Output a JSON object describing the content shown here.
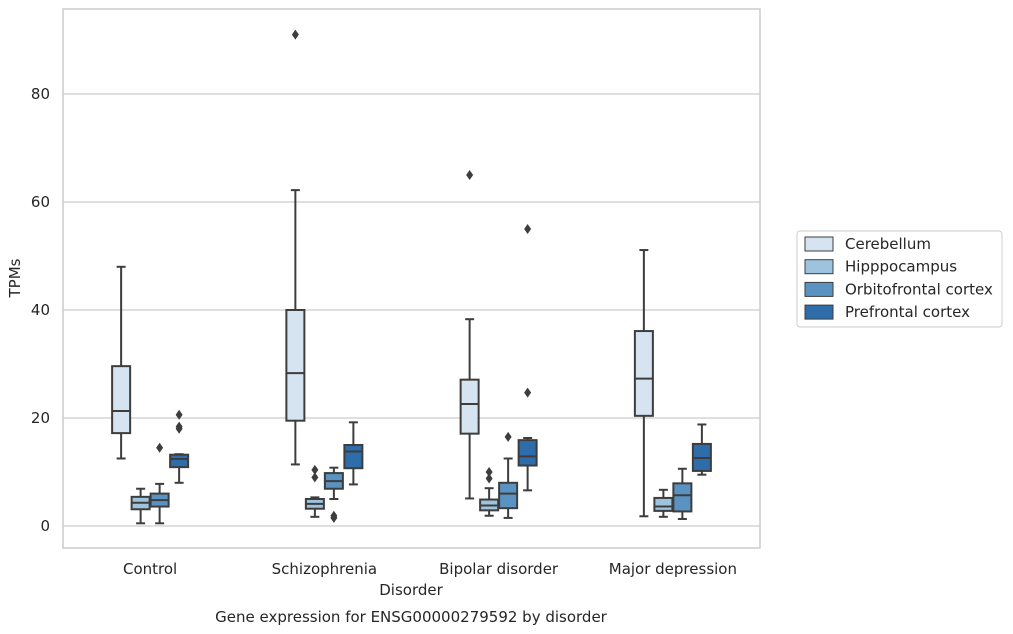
{
  "chart_data": {
    "type": "box",
    "title": "Gene expression for ENSG00000279592 by disorder",
    "xlabel": "Disorder",
    "ylabel": "TPMs",
    "categories": [
      "Control",
      "Schizophrenia",
      "Bipolar disorder",
      "Major depression"
    ],
    "yticks": [
      0,
      20,
      40,
      60,
      80
    ],
    "ylim": [
      -4,
      96
    ],
    "grid": "horizontal",
    "legend_position": "right",
    "series": [
      {
        "name": "Cerebellum",
        "color": "#d6e4f2",
        "boxes": [
          {
            "whisker_low": 12.5,
            "q1": 17.2,
            "median": 21.3,
            "q3": 29.6,
            "whisker_high": 48.0,
            "outliers": []
          },
          {
            "whisker_low": 11.4,
            "q1": 19.5,
            "median": 28.3,
            "q3": 40.0,
            "whisker_high": 62.2,
            "outliers": [
              91.0
            ]
          },
          {
            "whisker_low": 5.1,
            "q1": 17.1,
            "median": 22.6,
            "q3": 27.1,
            "whisker_high": 38.3,
            "outliers": [
              65.0
            ]
          },
          {
            "whisker_low": 1.8,
            "q1": 20.4,
            "median": 27.3,
            "q3": 36.1,
            "whisker_high": 51.1,
            "outliers": []
          }
        ]
      },
      {
        "name": "Hipppocampus",
        "color": "#9dc3de",
        "boxes": [
          {
            "whisker_low": 0.5,
            "q1": 3.1,
            "median": 4.3,
            "q3": 5.4,
            "whisker_high": 6.9,
            "outliers": []
          },
          {
            "whisker_low": 1.7,
            "q1": 3.2,
            "median": 4.1,
            "q3": 5.0,
            "whisker_high": 5.3,
            "outliers": [
              10.4,
              9.0
            ]
          },
          {
            "whisker_low": 1.9,
            "q1": 2.9,
            "median": 3.8,
            "q3": 4.9,
            "whisker_high": 7.0,
            "outliers": [
              10.0,
              8.8
            ]
          },
          {
            "whisker_low": 1.7,
            "q1": 2.8,
            "median": 3.6,
            "q3": 5.2,
            "whisker_high": 6.7,
            "outliers": []
          }
        ]
      },
      {
        "name": "Orbitofrontal cortex",
        "color": "#5a93c2",
        "boxes": [
          {
            "whisker_low": 0.5,
            "q1": 3.6,
            "median": 4.8,
            "q3": 6.0,
            "whisker_high": 7.8,
            "outliers": [
              14.5
            ]
          },
          {
            "whisker_low": 5.0,
            "q1": 6.9,
            "median": 8.3,
            "q3": 9.8,
            "whisker_high": 10.8,
            "outliers": [
              1.5,
              1.9
            ]
          },
          {
            "whisker_low": 1.5,
            "q1": 3.3,
            "median": 6.0,
            "q3": 8.0,
            "whisker_high": 12.5,
            "outliers": [
              16.5
            ]
          },
          {
            "whisker_low": 1.3,
            "q1": 2.7,
            "median": 5.7,
            "q3": 7.9,
            "whisker_high": 10.6,
            "outliers": []
          }
        ]
      },
      {
        "name": "Prefrontal cortex",
        "color": "#2e6da9",
        "boxes": [
          {
            "whisker_low": 8.0,
            "q1": 10.9,
            "median": 12.4,
            "q3": 13.2,
            "whisker_high": 13.3,
            "outliers": [
              20.6,
              18.4,
              18.0
            ]
          },
          {
            "whisker_low": 7.7,
            "q1": 10.7,
            "median": 13.8,
            "q3": 15.0,
            "whisker_high": 19.2,
            "outliers": []
          },
          {
            "whisker_low": 6.6,
            "q1": 11.2,
            "median": 12.9,
            "q3": 15.9,
            "whisker_high": 16.3,
            "outliers": [
              55.0,
              24.7
            ]
          },
          {
            "whisker_low": 9.5,
            "q1": 10.2,
            "median": 12.6,
            "q3": 15.2,
            "whisker_high": 18.8,
            "outliers": []
          }
        ]
      }
    ]
  }
}
